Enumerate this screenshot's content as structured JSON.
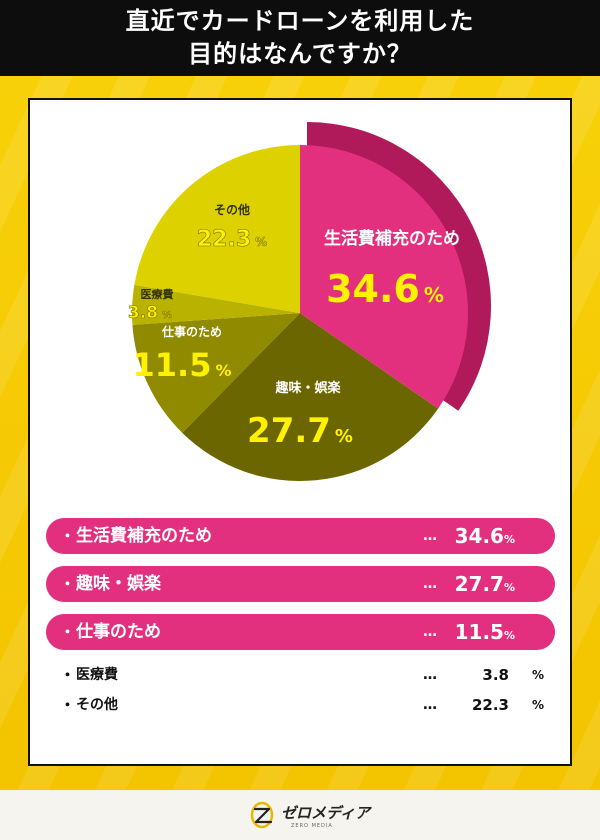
{
  "title": {
    "line1": "直近でカードローンを利用した",
    "line2": "目的はなんですか？"
  },
  "chart_data": {
    "type": "pie",
    "unit": "%",
    "slices": [
      {
        "label": "生活費補充のため",
        "value": 34.6,
        "color": "#e2307e",
        "depth_color": "#b01a5a"
      },
      {
        "label": "趣味・娯楽",
        "value": 27.7,
        "color": "#6b6600"
      },
      {
        "label": "仕事のため",
        "value": 11.5,
        "color": "#8f8a00"
      },
      {
        "label": "医療費",
        "value": 3.8,
        "color": "#b9b300"
      },
      {
        "label": "その他",
        "value": 22.3,
        "color": "#ddd200"
      }
    ]
  },
  "legend": {
    "dots": "…",
    "percent_sign": "%",
    "rows": [
      {
        "bullet": "・",
        "label": "生活費補充のため",
        "value": "34.6",
        "highlight": true
      },
      {
        "bullet": "・",
        "label": "趣味・娯楽",
        "value": "27.7",
        "highlight": true
      },
      {
        "bullet": "・",
        "label": "仕事のため",
        "value": "11.5",
        "highlight": true
      },
      {
        "bullet": "・",
        "label": "医療費",
        "value": "3.8",
        "highlight": false
      },
      {
        "bullet": "・",
        "label": "その他",
        "value": "22.3",
        "highlight": false
      }
    ]
  },
  "footer": {
    "logo_text": "ゼロメディア",
    "logo_subtext": "ZERO MEDIA",
    "logo_icon": "zero-media-logo-icon"
  }
}
